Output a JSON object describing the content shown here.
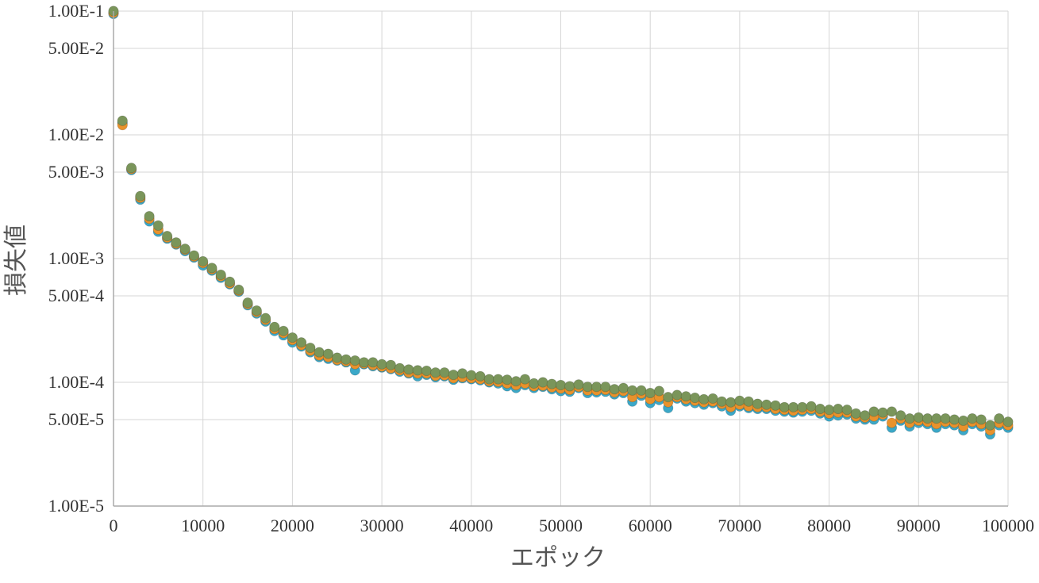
{
  "chart_data": {
    "type": "scatter",
    "xlabel": "エポック",
    "ylabel": "損失値",
    "xlim": [
      0,
      100000
    ],
    "ylim": [
      1e-05,
      0.1
    ],
    "yscale": "log",
    "grid": true,
    "x_ticks": [
      0,
      10000,
      20000,
      30000,
      40000,
      50000,
      60000,
      70000,
      80000,
      90000,
      100000
    ],
    "x_tick_labels": [
      "0",
      "10000",
      "20000",
      "30000",
      "40000",
      "50000",
      "60000",
      "70000",
      "80000",
      "90000",
      "100000"
    ],
    "y_ticks": [
      0.1,
      0.05,
      0.01,
      0.005,
      0.001,
      0.0005,
      0.0001,
      5e-05,
      1e-05
    ],
    "y_tick_labels": [
      "1.00E-1",
      "5.00E-2",
      "1.00E-2",
      "5.00E-3",
      "1.00E-3",
      "5.00E-4",
      "1.00E-4",
      "5.00E-5",
      "1.00E-5"
    ],
    "series": [
      {
        "color": "#3ba8c8",
        "x": [
          0,
          1000,
          2000,
          3000,
          4000,
          5000,
          6000,
          7000,
          8000,
          9000,
          10000,
          11000,
          12000,
          13000,
          14000,
          15000,
          16000,
          17000,
          18000,
          19000,
          20000,
          21000,
          22000,
          23000,
          24000,
          25000,
          26000,
          27000,
          28000,
          29000,
          30000,
          31000,
          32000,
          33000,
          34000,
          35000,
          36000,
          37000,
          38000,
          39000,
          40000,
          41000,
          42000,
          43000,
          44000,
          45000,
          46000,
          47000,
          48000,
          49000,
          50000,
          51000,
          52000,
          53000,
          54000,
          55000,
          56000,
          57000,
          58000,
          59000,
          60000,
          61000,
          62000,
          63000,
          64000,
          65000,
          66000,
          67000,
          68000,
          69000,
          70000,
          71000,
          72000,
          73000,
          74000,
          75000,
          76000,
          77000,
          78000,
          79000,
          80000,
          81000,
          82000,
          83000,
          84000,
          85000,
          86000,
          87000,
          88000,
          89000,
          90000,
          91000,
          92000,
          93000,
          94000,
          95000,
          96000,
          97000,
          98000,
          99000,
          100000
        ],
        "y": [
          0.095,
          0.0125,
          0.0052,
          0.003,
          0.002,
          0.00165,
          0.00145,
          0.0013,
          0.00115,
          0.00102,
          0.00088,
          0.0008,
          0.0007,
          0.00062,
          0.00054,
          0.00042,
          0.00036,
          0.00031,
          0.00026,
          0.00024,
          0.00021,
          0.000195,
          0.000175,
          0.00016,
          0.000155,
          0.00015,
          0.000145,
          0.000125,
          0.00014,
          0.000135,
          0.000132,
          0.000128,
          0.000122,
          0.000118,
          0.000112,
          0.000115,
          0.00011,
          0.000112,
          0.000105,
          0.000108,
          0.000106,
          0.000104,
          0.0001,
          9.8e-05,
          9.3e-05,
          9e-05,
          9.5e-05,
          9e-05,
          9.2e-05,
          8.8e-05,
          8.5e-05,
          8.4e-05,
          9e-05,
          8.2e-05,
          8.3e-05,
          8.4e-05,
          8e-05,
          8.2e-05,
          7e-05,
          7.8e-05,
          6.8e-05,
          7.2e-05,
          6.2e-05,
          7.4e-05,
          7e-05,
          6.8e-05,
          6.6e-05,
          6.8e-05,
          6.4e-05,
          5.9e-05,
          6.4e-05,
          6.2e-05,
          6.1e-05,
          6.1e-05,
          5.9e-05,
          5.8e-05,
          5.7e-05,
          5.8e-05,
          5.9e-05,
          5.6e-05,
          5.3e-05,
          5.4e-05,
          5.5e-05,
          5.1e-05,
          5e-05,
          5e-05,
          5.3e-05,
          4.3e-05,
          4.9e-05,
          4.4e-05,
          4.7e-05,
          4.6e-05,
          4.3e-05,
          4.6e-05,
          4.5e-05,
          4.1e-05,
          4.6e-05,
          4.4e-05,
          3.8e-05,
          4.5e-05,
          4.3e-05
        ]
      },
      {
        "color": "#e8922c",
        "x": [
          0,
          1000,
          2000,
          3000,
          4000,
          5000,
          6000,
          7000,
          8000,
          9000,
          10000,
          11000,
          12000,
          13000,
          14000,
          15000,
          16000,
          17000,
          18000,
          19000,
          20000,
          21000,
          22000,
          23000,
          24000,
          25000,
          26000,
          27000,
          28000,
          29000,
          30000,
          31000,
          32000,
          33000,
          34000,
          35000,
          36000,
          37000,
          38000,
          39000,
          40000,
          41000,
          42000,
          43000,
          44000,
          45000,
          46000,
          47000,
          48000,
          49000,
          50000,
          51000,
          52000,
          53000,
          54000,
          55000,
          56000,
          57000,
          58000,
          59000,
          60000,
          61000,
          62000,
          63000,
          64000,
          65000,
          66000,
          67000,
          68000,
          69000,
          70000,
          71000,
          72000,
          73000,
          74000,
          75000,
          76000,
          77000,
          78000,
          79000,
          80000,
          81000,
          82000,
          83000,
          84000,
          85000,
          86000,
          87000,
          88000,
          89000,
          90000,
          91000,
          92000,
          93000,
          94000,
          95000,
          96000,
          97000,
          98000,
          99000,
          100000
        ],
        "y": [
          0.097,
          0.012,
          0.0053,
          0.0031,
          0.0021,
          0.00172,
          0.00148,
          0.00132,
          0.00118,
          0.00104,
          0.00092,
          0.00082,
          0.00072,
          0.00063,
          0.00055,
          0.00043,
          0.00037,
          0.00032,
          0.00027,
          0.00025,
          0.00022,
          0.0002,
          0.00018,
          0.000165,
          0.00016,
          0.000152,
          0.000148,
          0.00014,
          0.000142,
          0.000138,
          0.000134,
          0.00013,
          0.000125,
          0.00012,
          0.000118,
          0.000118,
          0.000113,
          0.000114,
          0.000108,
          0.00011,
          0.000108,
          0.000106,
          0.000102,
          0.000101,
          9.8e-05,
          9.5e-05,
          9.8e-05,
          9.3e-05,
          9.4e-05,
          9.1e-05,
          8.9e-05,
          8.7e-05,
          9.2e-05,
          8.6e-05,
          8.6e-05,
          8.7e-05,
          8.3e-05,
          8.5e-05,
          7.6e-05,
          8.1e-05,
          7.3e-05,
          7.6e-05,
          6.9e-05,
          7.6e-05,
          7.3e-05,
          7.1e-05,
          6.9e-05,
          7e-05,
          6.7e-05,
          6.3e-05,
          6.6e-05,
          6.4e-05,
          6.3e-05,
          6.3e-05,
          6.1e-05,
          6e-05,
          5.9e-05,
          6e-05,
          6.1e-05,
          5.8e-05,
          5.6e-05,
          5.7e-05,
          5.7e-05,
          5.3e-05,
          5.2e-05,
          5.3e-05,
          5.5e-05,
          4.7e-05,
          5.1e-05,
          4.7e-05,
          4.9e-05,
          4.8e-05,
          4.6e-05,
          4.8e-05,
          4.7e-05,
          4.4e-05,
          4.8e-05,
          4.6e-05,
          4.1e-05,
          4.7e-05,
          4.5e-05
        ]
      },
      {
        "color": "#7a955a",
        "x": [
          0,
          1000,
          2000,
          3000,
          4000,
          5000,
          6000,
          7000,
          8000,
          9000,
          10000,
          11000,
          12000,
          13000,
          14000,
          15000,
          16000,
          17000,
          18000,
          19000,
          20000,
          21000,
          22000,
          23000,
          24000,
          25000,
          26000,
          27000,
          28000,
          29000,
          30000,
          31000,
          32000,
          33000,
          34000,
          35000,
          36000,
          37000,
          38000,
          39000,
          40000,
          41000,
          42000,
          43000,
          44000,
          45000,
          46000,
          47000,
          48000,
          49000,
          50000,
          51000,
          52000,
          53000,
          54000,
          55000,
          56000,
          57000,
          58000,
          59000,
          60000,
          61000,
          62000,
          63000,
          64000,
          65000,
          66000,
          67000,
          68000,
          69000,
          70000,
          71000,
          72000,
          73000,
          74000,
          75000,
          76000,
          77000,
          78000,
          79000,
          80000,
          81000,
          82000,
          83000,
          84000,
          85000,
          86000,
          87000,
          88000,
          89000,
          90000,
          91000,
          92000,
          93000,
          94000,
          95000,
          96000,
          97000,
          98000,
          99000,
          100000
        ],
        "y": [
          0.1,
          0.013,
          0.0054,
          0.0032,
          0.0022,
          0.00185,
          0.00152,
          0.00135,
          0.0012,
          0.00106,
          0.00095,
          0.00084,
          0.00074,
          0.00065,
          0.00056,
          0.00044,
          0.00038,
          0.00033,
          0.00028,
          0.00026,
          0.00023,
          0.00021,
          0.00019,
          0.000175,
          0.00017,
          0.000158,
          0.000153,
          0.00015,
          0.000145,
          0.000145,
          0.00014,
          0.000138,
          0.00013,
          0.000127,
          0.000125,
          0.000124,
          0.00012,
          0.00012,
          0.000115,
          0.000118,
          0.000114,
          0.000112,
          0.000106,
          0.000106,
          0.000105,
          0.000102,
          0.000106,
          9.8e-05,
          0.0001,
          9.7e-05,
          9.5e-05,
          9.3e-05,
          9.6e-05,
          9.2e-05,
          9.2e-05,
          9.2e-05,
          8.8e-05,
          9e-05,
          8.6e-05,
          8.6e-05,
          8.2e-05,
          8.5e-05,
          7.6e-05,
          7.9e-05,
          7.7e-05,
          7.5e-05,
          7.3e-05,
          7.4e-05,
          7e-05,
          6.9e-05,
          7.1e-05,
          7e-05,
          6.7e-05,
          6.6e-05,
          6.5e-05,
          6.3e-05,
          6.3e-05,
          6.3e-05,
          6.4e-05,
          6.1e-05,
          6e-05,
          6.1e-05,
          6e-05,
          5.6e-05,
          5.4e-05,
          5.8e-05,
          5.7e-05,
          5.8e-05,
          5.4e-05,
          5.1e-05,
          5.2e-05,
          5.1e-05,
          5.1e-05,
          5.1e-05,
          5e-05,
          4.9e-05,
          5.1e-05,
          5e-05,
          4.5e-05,
          5.1e-05,
          4.8e-05
        ]
      }
    ]
  }
}
